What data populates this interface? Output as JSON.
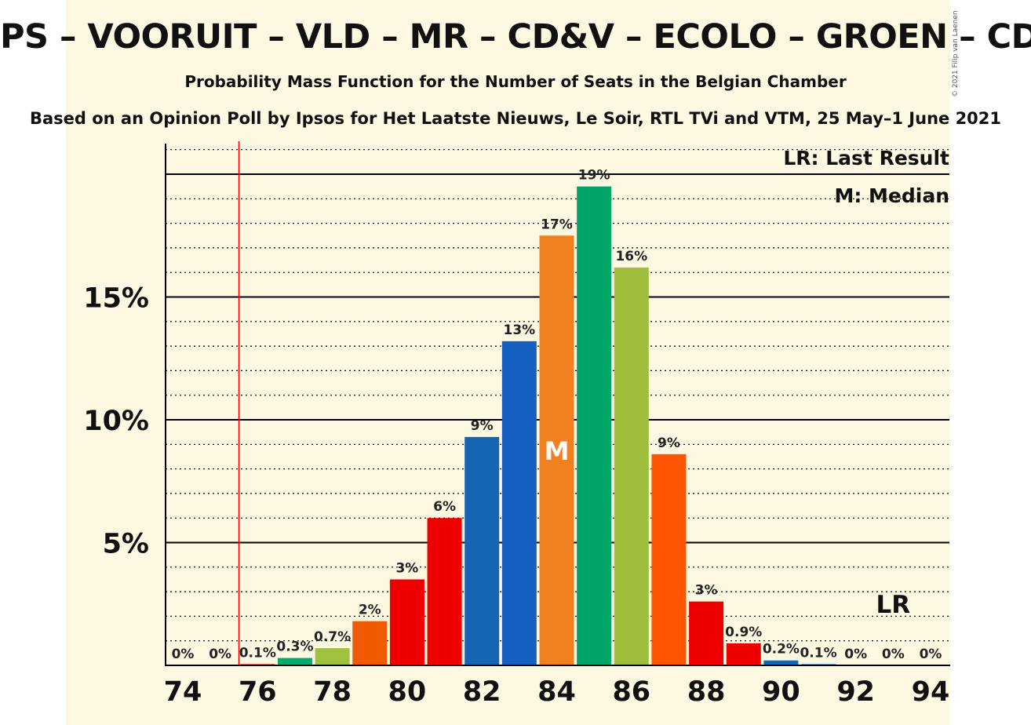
{
  "header": {
    "title": "PS – VOORUIT – VLD – MR – CD&V – ECOLO – GROEN – CDH",
    "subtitle": "Probability Mass Function for the Number of Seats in the Belgian Chamber",
    "source": "Based on an Opinion Poll by Ipsos for Het Laatste Nieuws, Le Soir, RTL TVi and VTM, 25 May–1 June 2021",
    "copyright": "© 2021 Filip van Laenen"
  },
  "legend": {
    "last_result": "LR: Last Result",
    "median": "M: Median"
  },
  "chart_data": {
    "type": "bar",
    "title": "Probability Mass Function for the Number of Seats in the Belgian Chamber",
    "xlabel": "",
    "ylabel": "",
    "x_tick_labels": [
      "74",
      "76",
      "78",
      "80",
      "82",
      "84",
      "86",
      "88",
      "90",
      "92",
      "94"
    ],
    "y_tick_labels": [
      "5%",
      "10%",
      "15%"
    ],
    "ylim": [
      0,
      21
    ],
    "grid": "solid lines at 5% steps, dotted lines at 1% steps",
    "categories": [
      74,
      75,
      76,
      77,
      78,
      79,
      80,
      81,
      82,
      83,
      84,
      85,
      86,
      87,
      88,
      89,
      90,
      91,
      92,
      93,
      94
    ],
    "values": [
      0,
      0,
      0.05,
      0.3,
      0.7,
      1.8,
      3.5,
      6.0,
      9.3,
      13.2,
      17.5,
      19.5,
      16.2,
      8.6,
      2.6,
      0.9,
      0.2,
      0.05,
      0,
      0,
      0
    ],
    "labels": [
      "0%",
      "0%",
      "0.1%",
      "0.3%",
      "0.7%",
      "2%",
      "3%",
      "6%",
      "9%",
      "13%",
      "17%",
      "19%",
      "16%",
      "9%",
      "3%",
      "0.9%",
      "0.2%",
      "0.1%",
      "0%",
      "0%",
      "0%"
    ],
    "colors": [
      "#e30613",
      "#e30613",
      "#e30613",
      "#00a86b",
      "#a0c040",
      "#f05a00",
      "#ee0000",
      "#ee0000",
      "#1565b4",
      "#1560c0",
      "#f08020",
      "#00a667",
      "#a0be3c",
      "#ff5500",
      "#ee0000",
      "#ee0000",
      "#1565b4",
      "#1560c0",
      "#f08020",
      "#00a667",
      "#a0be3c"
    ],
    "threshold_line": {
      "x": 75.5,
      "color": "#ff0000"
    },
    "median": {
      "x": 84,
      "label": "M"
    },
    "last_result": {
      "x": 93,
      "label": "LR"
    }
  }
}
